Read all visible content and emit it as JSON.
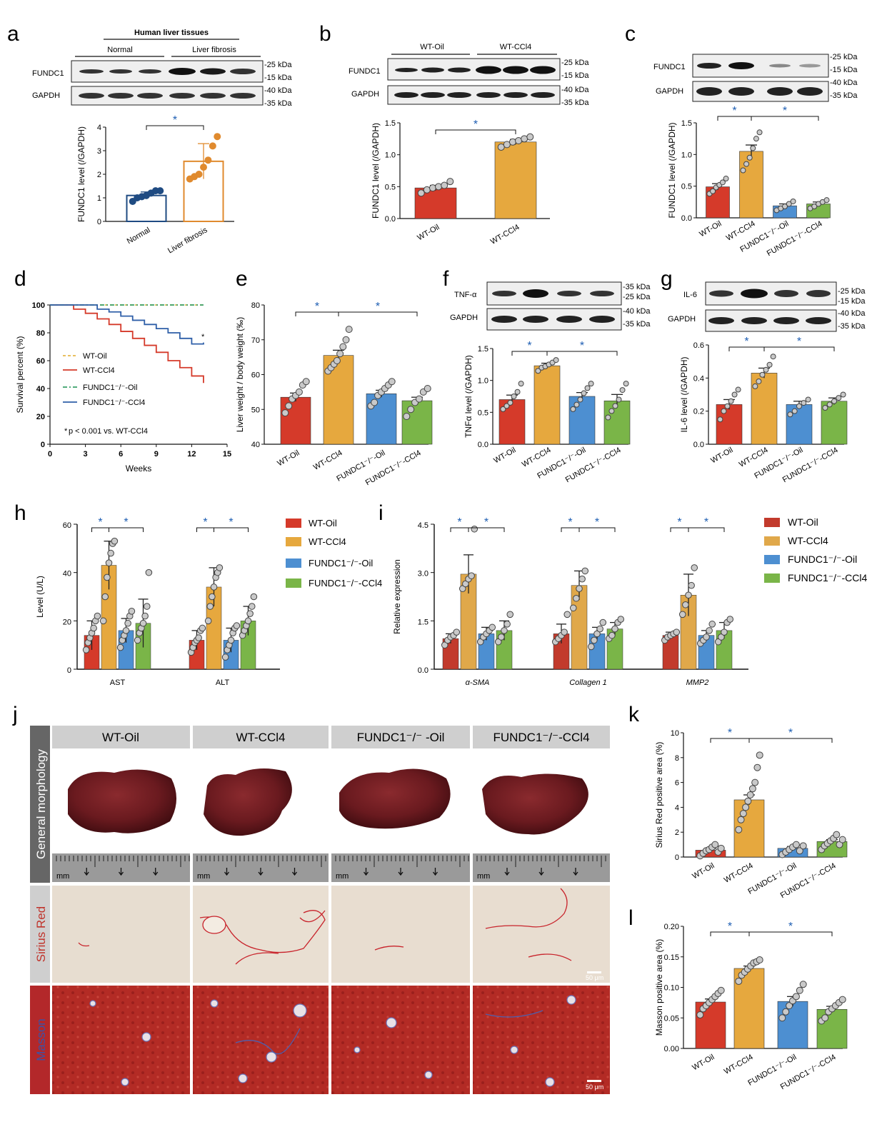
{
  "colors": {
    "wt_oil": "#d53a2a",
    "wt_ccl4": "#e6a83e",
    "ko_oil": "#4d8fd1",
    "ko_ccl4": "#7ab548",
    "normal": "#1f4b82",
    "fibrosis": "#e08a2e",
    "star": "#1f5fb3",
    "panel_header": "#cfcfcf",
    "side_header": "#666666",
    "side_header_red": "#b3282a"
  },
  "panels": {
    "a": "a",
    "b": "b",
    "c": "c",
    "d": "d",
    "e": "e",
    "f": "f",
    "g": "g",
    "h": "h",
    "i": "i",
    "j": "j",
    "k": "k",
    "l": "l"
  },
  "star": "*",
  "blots": {
    "a": {
      "title": "Human liver tissues",
      "group1": "Normal",
      "group2": "Liver fibrosis",
      "row1": "FUNDC1",
      "row2": "GAPDH",
      "m1": "-25 kDa",
      "m2": "-15 kDa",
      "m3": "-40 kDa",
      "m4": "-35 kDa"
    },
    "b": {
      "group1": "WT-Oil",
      "group2": "WT-CCl4",
      "row1": "FUNDC1",
      "row2": "GAPDH",
      "m1": "-25 kDa",
      "m2": "-15 kDa",
      "m3": "-40 kDa",
      "m4": "-35 kDa"
    },
    "c": {
      "row1": "FUNDC1",
      "row2": "GAPDH",
      "m1": "-25 kDa",
      "m2": "-15 kDa",
      "m3": "-40 kDa",
      "m4": "-35 kDa"
    },
    "f": {
      "row1": "TNF-α",
      "row2": "GAPDH",
      "m1": "-35 kDa",
      "m2": "-25 kDa",
      "m3": "-40 kDa",
      "m4": "-35 kDa"
    },
    "g": {
      "row1": "IL-6",
      "row2": "GAPDH",
      "m1": "-25 kDa",
      "m2": "-15 kDa",
      "m3": "-40 kDa",
      "m4": "-35 kDa"
    }
  },
  "chart_data": [
    {
      "id": "a",
      "type": "bar",
      "categories": [
        "Normal",
        "Liver fibrosis"
      ],
      "values": [
        1.1,
        2.55
      ],
      "errors": [
        0.15,
        0.75
      ],
      "ylabel": "FUNDC1 level (/GAPDH)",
      "ylim": [
        0,
        4
      ],
      "yticks": [
        "0",
        "1",
        "2",
        "3",
        "4"
      ],
      "points": [
        [
          0.85,
          1.0,
          1.05,
          1.1,
          1.2,
          1.3,
          1.3
        ],
        [
          1.8,
          1.9,
          2.0,
          2.3,
          2.6,
          3.2,
          3.6
        ]
      ]
    },
    {
      "id": "b",
      "type": "bar",
      "categories": [
        "WT-Oil",
        "WT-CCl4"
      ],
      "values": [
        0.48,
        1.2
      ],
      "errors": [
        0.04,
        0.04
      ],
      "ylabel": "FUNDC1 level (/GAPDH)",
      "ylim": [
        0,
        1.5
      ],
      "yticks": [
        "0.0",
        "0.5",
        "1.0",
        "1.5"
      ],
      "points": [
        [
          0.4,
          0.45,
          0.48,
          0.5,
          0.52,
          0.58
        ],
        [
          1.12,
          1.16,
          1.2,
          1.22,
          1.25,
          1.28
        ]
      ]
    },
    {
      "id": "c",
      "type": "bar",
      "categories": [
        "WT-Oil",
        "WT-CCl4",
        "FUNDC1⁻/⁻-Oil",
        "FUNDC1⁻/⁻-CCl4"
      ],
      "values": [
        0.49,
        1.05,
        0.19,
        0.22
      ],
      "errors": [
        0.05,
        0.1,
        0.03,
        0.03
      ],
      "ylabel": "FUNDC1 level (/GAPDH)",
      "ylim": [
        0,
        1.5
      ],
      "yticks": [
        "0.0",
        "0.5",
        "1.0",
        "1.5"
      ],
      "points": [
        [
          0.38,
          0.42,
          0.48,
          0.52,
          0.56,
          0.62
        ],
        [
          0.75,
          0.85,
          0.95,
          1.1,
          1.25,
          1.35
        ],
        [
          0.12,
          0.15,
          0.18,
          0.22,
          0.26
        ],
        [
          0.15,
          0.18,
          0.22,
          0.25,
          0.28
        ]
      ]
    },
    {
      "id": "d",
      "type": "line",
      "xlabel": "Weeks",
      "ylabel": "Survival percent (%)",
      "xlim": [
        0,
        15
      ],
      "ylim": [
        0,
        100
      ],
      "xticks": [
        "0",
        "3",
        "6",
        "9",
        "12",
        "15"
      ],
      "yticks": [
        "0",
        "20",
        "40",
        "60",
        "80",
        "100"
      ],
      "series": [
        {
          "name": "WT-Oil",
          "x": [
            0,
            13
          ],
          "y": [
            100,
            100
          ]
        },
        {
          "name": "WT-CCl4",
          "x": [
            0,
            2,
            3,
            4,
            5,
            6,
            7,
            8,
            9,
            10,
            11,
            12,
            13
          ],
          "y": [
            100,
            97,
            94,
            90,
            86,
            81,
            76,
            71,
            66,
            60,
            55,
            49,
            44
          ]
        },
        {
          "name": "FUNDC1⁻/⁻-Oil",
          "x": [
            0,
            13
          ],
          "y": [
            100,
            100
          ]
        },
        {
          "name": "FUNDC1⁻/⁻-CCl4",
          "x": [
            0,
            4,
            5,
            6,
            7,
            8,
            9,
            10,
            11,
            12,
            13
          ],
          "y": [
            100,
            97,
            95,
            92,
            89,
            86,
            83,
            80,
            76,
            72,
            73
          ]
        }
      ],
      "annotation": "p < 0.001 vs. WT-CCl4",
      "annotation_prefix": "*"
    },
    {
      "id": "e",
      "type": "bar",
      "categories": [
        "WT-Oil",
        "WT-CCl4",
        "FUNDC1⁻/⁻-Oil",
        "FUNDC1⁻/⁻-CCl4"
      ],
      "values": [
        53.5,
        65.5,
        54.5,
        52.5
      ],
      "errors": [
        1.2,
        1.5,
        1.0,
        1.0
      ],
      "ylabel": "Liver weight / body weight (‰)",
      "ylim": [
        40,
        80
      ],
      "yticks": [
        "40",
        "50",
        "60",
        "70",
        "80"
      ],
      "points": [
        [
          49,
          51,
          53,
          54,
          55,
          57,
          58
        ],
        [
          61,
          62,
          63,
          64,
          66,
          68,
          70,
          73
        ],
        [
          51,
          52,
          54,
          55,
          56,
          57,
          58
        ],
        [
          48,
          50,
          52,
          53,
          55,
          56
        ]
      ]
    },
    {
      "id": "f",
      "type": "bar",
      "categories": [
        "WT-Oil",
        "WT-CCl4",
        "FUNDC1⁻/⁻-Oil",
        "FUNDC1⁻/⁻-CCl4"
      ],
      "values": [
        0.7,
        1.23,
        0.75,
        0.68
      ],
      "errors": [
        0.07,
        0.04,
        0.06,
        0.1
      ],
      "ylabel": "TNFα level (/GAPDH)",
      "ylim": [
        0,
        1.5
      ],
      "yticks": [
        "0.0",
        "0.5",
        "1.0",
        "1.5"
      ],
      "points": [
        [
          0.55,
          0.6,
          0.65,
          0.75,
          0.82,
          0.95
        ],
        [
          1.15,
          1.2,
          1.22,
          1.25,
          1.28,
          1.32
        ],
        [
          0.55,
          0.62,
          0.7,
          0.8,
          0.88,
          0.95
        ],
        [
          0.42,
          0.52,
          0.6,
          0.7,
          0.85,
          0.95
        ]
      ]
    },
    {
      "id": "g",
      "type": "bar",
      "categories": [
        "WT-Oil",
        "WT-CCl4",
        "FUNDC1⁻/⁻-Oil",
        "FUNDC1⁻/⁻-CCl4"
      ],
      "values": [
        0.24,
        0.43,
        0.24,
        0.26
      ],
      "errors": [
        0.03,
        0.03,
        0.02,
        0.02
      ],
      "ylabel": "IL-6 level (/GAPDH)",
      "ylim": [
        0,
        0.6
      ],
      "yticks": [
        "0.0",
        "0.2",
        "0.4",
        "0.6"
      ],
      "points": [
        [
          0.15,
          0.2,
          0.23,
          0.26,
          0.3,
          0.33
        ],
        [
          0.35,
          0.38,
          0.42,
          0.45,
          0.48,
          0.53
        ],
        [
          0.18,
          0.2,
          0.23,
          0.25,
          0.27
        ],
        [
          0.22,
          0.24,
          0.26,
          0.28,
          0.3
        ]
      ]
    },
    {
      "id": "h",
      "type": "bar",
      "categories": [
        "AST",
        "ALT"
      ],
      "ylabel": "Level (U/L)",
      "ylim": [
        0,
        60
      ],
      "yticks": [
        "0",
        "20",
        "40",
        "60"
      ],
      "series": [
        {
          "name": "WT-Oil",
          "values": [
            14,
            12
          ],
          "errors": [
            6,
            4
          ],
          "points": [
            [
              8,
              11,
              13,
              15,
              17,
              20,
              22
            ],
            [
              7,
              9,
              11,
              12,
              13,
              16,
              17
            ]
          ]
        },
        {
          "name": "WT-CCl4",
          "values": [
            43,
            34
          ],
          "errors": [
            10,
            8
          ],
          "points": [
            [
              20,
              30,
              38,
              44,
              48,
              52,
              53
            ],
            [
              20,
              26,
              30,
              34,
              38,
              40,
              42
            ]
          ]
        },
        {
          "name": "FUNDC1⁻/⁻-Oil",
          "values": [
            16,
            12
          ],
          "errors": [
            5,
            5
          ],
          "points": [
            [
              9,
              12,
              14,
              16,
              19,
              22,
              24
            ],
            [
              5,
              8,
              10,
              12,
              15,
              17,
              18
            ]
          ]
        },
        {
          "name": "FUNDC1⁻/⁻-CCl4",
          "values": [
            19,
            20
          ],
          "errors": [
            10,
            6
          ],
          "points": [
            [
              12,
              15,
              17,
              19,
              22,
              26,
              40
            ],
            [
              14,
              16,
              18,
              20,
              23,
              26,
              30
            ]
          ]
        }
      ]
    },
    {
      "id": "i",
      "type": "bar",
      "categories": [
        "α-SMA",
        "Collagen 1",
        "MMP2"
      ],
      "ylabel": "Relative expression",
      "ylim": [
        0,
        4.5
      ],
      "yticks": [
        "0.0",
        "1.5",
        "3.0",
        "4.5"
      ],
      "series": [
        {
          "name": "WT-Oil",
          "values": [
            0.95,
            1.1,
            1.05
          ],
          "errors": [
            0.15,
            0.3,
            0.1
          ],
          "points": [
            [
              0.75,
              0.9,
              1.0,
              1.05,
              1.15
            ],
            [
              0.85,
              0.95,
              1.05,
              1.15,
              1.7
            ],
            [
              0.9,
              1.0,
              1.05,
              1.1,
              1.15
            ]
          ]
        },
        {
          "name": "WT-CCl4",
          "values": [
            2.95,
            2.6,
            2.3
          ],
          "errors": [
            0.6,
            0.45,
            0.65
          ],
          "points": [
            [
              2.5,
              2.65,
              2.8,
              2.9,
              4.35
            ],
            [
              1.9,
              2.2,
              2.5,
              2.8,
              3.05
            ],
            [
              1.7,
              2.0,
              2.3,
              2.6,
              3.15
            ]
          ]
        },
        {
          "name": "FUNDC1⁻/⁻-Oil",
          "values": [
            1.1,
            1.1,
            1.05
          ],
          "errors": [
            0.2,
            0.2,
            0.15
          ],
          "points": [
            [
              0.85,
              1.0,
              1.1,
              1.2,
              1.3
            ],
            [
              0.7,
              0.9,
              1.1,
              1.25,
              1.45
            ],
            [
              0.8,
              0.9,
              1.0,
              1.2,
              1.4
            ]
          ]
        },
        {
          "name": "FUNDC1⁻/⁻-CCl4",
          "values": [
            1.2,
            1.25,
            1.2
          ],
          "errors": [
            0.3,
            0.2,
            0.25
          ],
          "points": [
            [
              0.85,
              1.0,
              1.2,
              1.4,
              1.7
            ],
            [
              0.95,
              1.05,
              1.25,
              1.45,
              1.55
            ],
            [
              0.85,
              1.0,
              1.15,
              1.45,
              1.55
            ]
          ]
        }
      ]
    },
    {
      "id": "k",
      "type": "bar",
      "categories": [
        "WT-Oil",
        "WT-CCl4",
        "FUNDC1⁻/⁻-Oil",
        "FUNDC1⁻/⁻-CCl4"
      ],
      "values": [
        0.55,
        4.6,
        0.7,
        1.25
      ],
      "errors": [
        0.15,
        0.4,
        0.15,
        0.15
      ],
      "ylabel": "Sirius Red positive area (%)",
      "ylim": [
        0,
        10
      ],
      "yticks": [
        "0",
        "2",
        "4",
        "6",
        "8",
        "10"
      ],
      "points": [
        [
          0.1,
          0.3,
          0.5,
          0.6,
          0.8,
          1.0,
          0.4,
          0.7
        ],
        [
          2.2,
          3.0,
          3.5,
          4.0,
          4.5,
          5.0,
          5.5,
          6.0,
          7.2,
          8.2
        ],
        [
          0.2,
          0.4,
          0.6,
          0.8,
          1.0,
          0.5,
          0.9
        ],
        [
          0.6,
          0.9,
          1.1,
          1.3,
          1.5,
          1.8,
          1.0,
          1.4
        ]
      ]
    },
    {
      "id": "l",
      "type": "bar",
      "categories": [
        "WT-Oil",
        "WT-CCl4",
        "FUNDC1⁻/⁻-Oil",
        "FUNDC1⁻/⁻-CCl4"
      ],
      "values": [
        0.076,
        0.131,
        0.077,
        0.064
      ],
      "errors": [
        0.005,
        0.004,
        0.008,
        0.005
      ],
      "ylabel": "Masson positive area (%)",
      "ylim": [
        0,
        0.2
      ],
      "yticks": [
        "0.00",
        "0.05",
        "0.10",
        "0.15",
        "0.20"
      ],
      "points": [
        [
          0.055,
          0.065,
          0.07,
          0.075,
          0.08,
          0.085,
          0.09,
          0.095
        ],
        [
          0.11,
          0.12,
          0.125,
          0.13,
          0.135,
          0.14,
          0.142,
          0.145
        ],
        [
          0.05,
          0.06,
          0.07,
          0.078,
          0.085,
          0.095,
          0.105
        ],
        [
          0.045,
          0.05,
          0.06,
          0.065,
          0.07,
          0.075,
          0.08
        ]
      ]
    }
  ],
  "legend": {
    "items": [
      "WT-Oil",
      "WT-CCl4",
      "FUNDC1⁻/⁻-Oil",
      "FUNDC1⁻/⁻-CCl4"
    ]
  },
  "panel_j": {
    "columns": [
      "WT-Oil",
      "WT-CCl4",
      "FUNDC1⁻/⁻ -Oil",
      "FUNDC1⁻/⁻-CCl4"
    ],
    "rows": [
      "General morphology",
      "Sirius Red",
      "Masson"
    ],
    "ruler_unit": "mm",
    "scale_bar": "50 μm"
  }
}
